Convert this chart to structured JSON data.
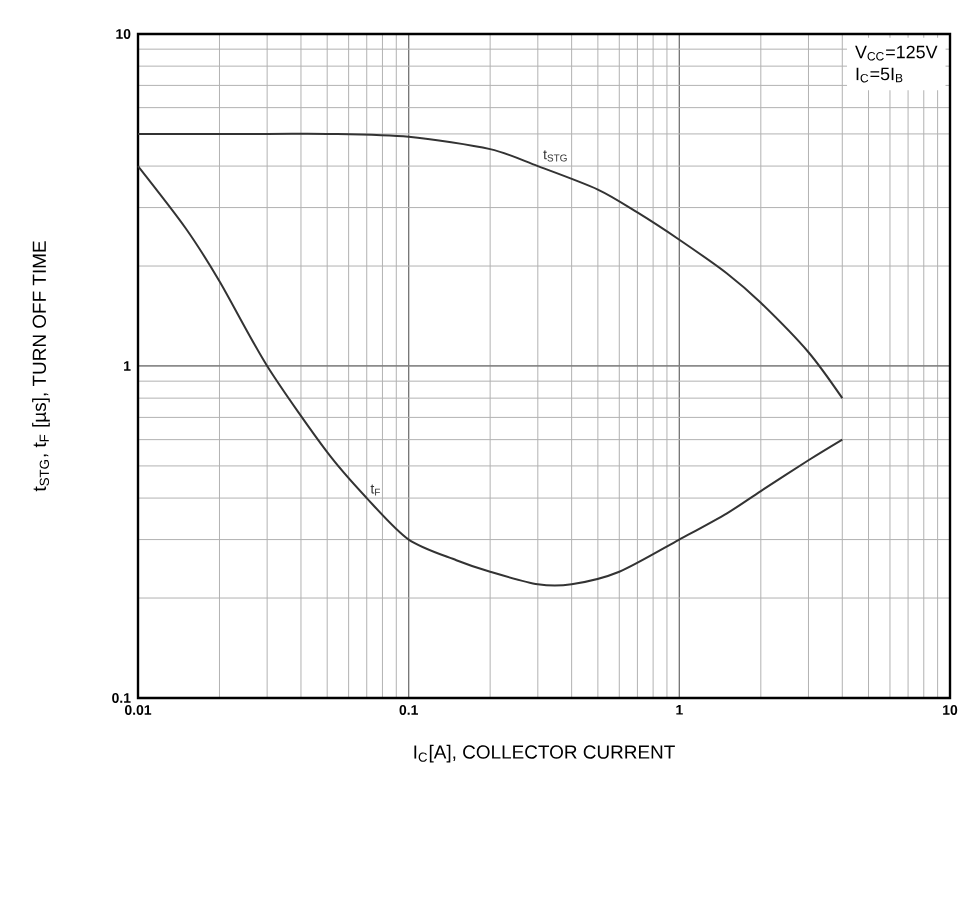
{
  "chart_data": {
    "type": "line",
    "xlabel": "I$_{C}$[A], COLLECTOR CURRENT",
    "ylabel": "t$_{STG}$, t$_{F}$ [µs], TURN OFF TIME",
    "log": "xy",
    "grid": true,
    "marker": "none",
    "line_style": "solid",
    "xlim": [
      0.01,
      10
    ],
    "ylim": [
      0.1,
      10
    ],
    "xticks": [
      0.01,
      0.1,
      1,
      10
    ],
    "yticks": [
      0.1,
      1,
      10
    ],
    "annotations": [
      "V$_{CC}$=125V",
      "I$_{C}$=5I$_{B}$"
    ],
    "series": [
      {
        "name": "t$_{STG}$",
        "color": "#333333",
        "x": [
          0.01,
          0.03,
          0.05,
          0.1,
          0.2,
          0.3,
          0.5,
          0.7,
          1,
          1.5,
          2,
          3,
          4
        ],
        "values": [
          5,
          5,
          5,
          4.9,
          4.5,
          4.0,
          3.4,
          2.9,
          2.4,
          1.9,
          1.55,
          1.1,
          0.8
        ]
      },
      {
        "name": "t$_{F}$",
        "color": "#333333",
        "x": [
          0.01,
          0.015,
          0.02,
          0.03,
          0.05,
          0.07,
          0.1,
          0.15,
          0.2,
          0.3,
          0.4,
          0.6,
          1,
          1.5,
          2,
          3,
          4
        ],
        "values": [
          4,
          2.6,
          1.8,
          1.0,
          0.55,
          0.4,
          0.3,
          0.26,
          0.24,
          0.22,
          0.22,
          0.24,
          0.3,
          0.36,
          0.42,
          0.52,
          0.6
        ]
      }
    ]
  }
}
